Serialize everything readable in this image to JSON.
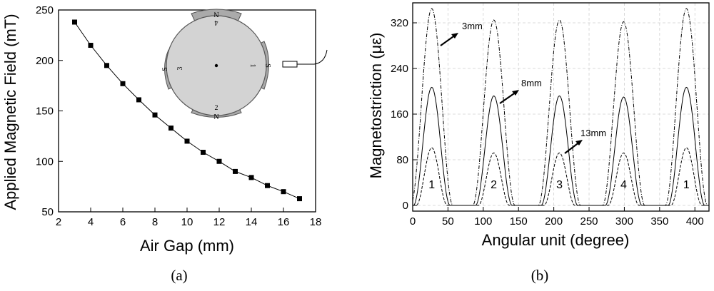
{
  "chart_data": [
    {
      "type": "line",
      "panel_label": "(a)",
      "xlabel": "Air Gap (mm)",
      "ylabel": "Applied Magnetic Field (mT)",
      "xlim": [
        2,
        18
      ],
      "ylim": [
        50,
        250
      ],
      "xticks": [
        "2",
        "4",
        "6",
        "8",
        "10",
        "12",
        "14",
        "16",
        "18"
      ],
      "yticks": [
        "50",
        "100",
        "150",
        "200",
        "250"
      ],
      "x": [
        3,
        4,
        5,
        6,
        7,
        8,
        9,
        10,
        11,
        12,
        13,
        14,
        15,
        16,
        17
      ],
      "y": [
        238,
        215,
        195,
        177,
        161,
        146,
        133,
        120,
        109,
        100,
        90,
        84,
        76,
        70,
        63
      ],
      "marker": "square",
      "inset": {
        "magnet_labels": [
          "4",
          "1",
          "2",
          "3"
        ],
        "pole_labels": [
          "N",
          "S",
          "N",
          "S"
        ]
      }
    },
    {
      "type": "line",
      "panel_label": "(b)",
      "xlabel": "Angular unit (degree)",
      "ylabel": "Magnetostriction (με)",
      "xlim": [
        0,
        420
      ],
      "ylim": [
        -10,
        355
      ],
      "xticks": [
        "0",
        "50",
        "100",
        "150",
        "200",
        "250",
        "300",
        "350",
        "400"
      ],
      "yticks": [
        "0",
        "80",
        "160",
        "240",
        "320"
      ],
      "grid": true,
      "peak_centers": [
        27,
        115,
        208,
        299,
        388
      ],
      "peak_labels": [
        "1",
        "2",
        "3",
        "4",
        "1"
      ],
      "series": [
        {
          "name": "3mm",
          "style": "dash-dot",
          "peaks": [
            345,
            325,
            325,
            322,
            345
          ],
          "half_width": 30
        },
        {
          "name": "8mm",
          "style": "solid",
          "peaks": [
            207,
            192,
            192,
            190,
            207
          ],
          "half_width": 26
        },
        {
          "name": "13mm",
          "style": "dashed",
          "peaks": [
            101,
            92,
            92,
            92,
            101
          ],
          "half_width": 22
        }
      ]
    }
  ]
}
